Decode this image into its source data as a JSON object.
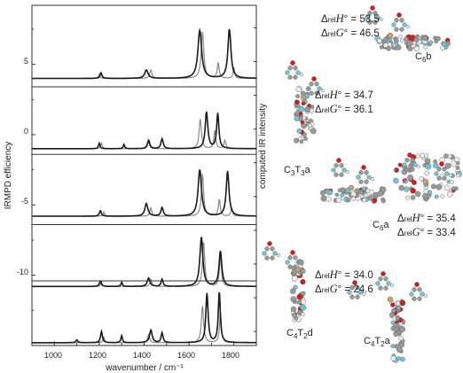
{
  "axes": {
    "xlabel": "wavenumber / cm⁻¹",
    "ylabel_left": "IRMPD efficiency",
    "ylabel_right": "computed IR intensity",
    "xticks": [
      "1000",
      "1200",
      "1400",
      "1600",
      "1800"
    ],
    "yticks": [
      "5",
      "0",
      "-5",
      "-10"
    ]
  },
  "chart_data": {
    "type": "line",
    "xlabel": "wavenumber / cm⁻¹",
    "ylabel": "IRMPD efficiency",
    "y2label": "computed IR intensity",
    "xlim": [
      900,
      1900
    ],
    "ylim": [
      -15,
      9.2
    ],
    "grid": false,
    "panels": [
      {
        "baseline": 4,
        "exp_peaks": [
          [
            1648,
            3.4,
            20
          ],
          [
            1780,
            3.5,
            16
          ],
          [
            1410,
            0.6,
            18
          ],
          [
            1208,
            0.4,
            10
          ]
        ],
        "calc_peaks": [
          [
            1660,
            3.3,
            14
          ],
          [
            1730,
            1.1,
            10
          ],
          [
            1800,
            0.8,
            8
          ],
          [
            1430,
            0.6,
            12
          ],
          [
            1200,
            0.3,
            8
          ]
        ]
      },
      {
        "baseline": -1,
        "exp_peaks": [
          [
            1678,
            2.6,
            14
          ],
          [
            1728,
            2.5,
            12
          ],
          [
            1480,
            0.7,
            12
          ],
          [
            1420,
            0.6,
            12
          ],
          [
            1200,
            0.4,
            8
          ],
          [
            1310,
            0.3,
            8
          ]
        ],
        "calc_peaks": [
          [
            1650,
            2.1,
            12
          ],
          [
            1715,
            1.3,
            10
          ],
          [
            1760,
            0.6,
            10
          ],
          [
            1420,
            0.5,
            10
          ],
          [
            1210,
            0.4,
            8
          ]
        ]
      },
      {
        "baseline": -5.8,
        "exp_peaks": [
          [
            1648,
            3.3,
            18
          ],
          [
            1772,
            3.2,
            15
          ],
          [
            1410,
            0.9,
            16
          ],
          [
            1480,
            0.6,
            12
          ],
          [
            1205,
            0.4,
            10
          ]
        ],
        "calc_peaks": [
          [
            1660,
            3.0,
            12
          ],
          [
            1735,
            1.2,
            10
          ],
          [
            1790,
            0.6,
            8
          ],
          [
            1430,
            0.6,
            10
          ],
          [
            1220,
            0.3,
            8
          ]
        ]
      },
      {
        "baseline": -10.8,
        "exp_peaks": [
          [
            1655,
            3.5,
            16
          ],
          [
            1740,
            2.5,
            15
          ],
          [
            1420,
            0.6,
            14
          ],
          [
            1480,
            0.5,
            10
          ],
          [
            1205,
            0.4,
            10
          ],
          [
            1300,
            0.3,
            8
          ]
        ],
        "calc_peaks": [
          [
            1665,
            3.2,
            12
          ],
          [
            1740,
            2.3,
            10
          ],
          [
            1430,
            0.5,
            10
          ],
          [
            1210,
            0.3,
            8
          ]
        ]
      },
      {
        "baseline": -14.8,
        "exp_peaks": [
          [
            1680,
            3.5,
            12
          ],
          [
            1735,
            3.6,
            11
          ],
          [
            1430,
            0.9,
            14
          ],
          [
            1480,
            0.7,
            10
          ],
          [
            1210,
            0.8,
            10
          ],
          [
            1300,
            0.5,
            8
          ],
          [
            1100,
            0.2,
            10
          ]
        ],
        "calc_peaks": [
          [
            1660,
            2.6,
            12
          ],
          [
            1740,
            2.1,
            10
          ],
          [
            1420,
            0.6,
            10
          ],
          [
            1220,
            0.4,
            8
          ]
        ]
      }
    ]
  },
  "structures": [
    {
      "name": "C6b",
      "base": "C",
      "sub": "6",
      "suffix": "b"
    },
    {
      "name": "C3T3a",
      "base": "C",
      "sub": "3",
      "mid": "T",
      "sub2": "3",
      "suffix": "a"
    },
    {
      "name": "C6a",
      "base": "C",
      "sub": "6",
      "suffix": "a"
    },
    {
      "name": "C4T2d",
      "base": "C",
      "sub": "4",
      "mid": "T",
      "sub2": "2",
      "suffix": "d"
    },
    {
      "name": "C4T2a",
      "base": "C",
      "sub": "4",
      "mid": "T",
      "sub2": "2",
      "suffix": "a"
    }
  ],
  "energies": [
    {
      "h": "53.5",
      "g": "46.5"
    },
    {
      "h": "34.7",
      "g": "36.1"
    },
    {
      "h": "35.4",
      "g": "33.4"
    },
    {
      "h": "34.0",
      "g": "24.6"
    }
  ],
  "energy_text": {
    "delta": "Δ",
    "rel": "rel",
    "h": "H",
    "g": "G",
    "deg": "°",
    "eq": " = "
  },
  "atom_colors": {
    "carbon": "#9a9a9a",
    "oxygen": "#cc2020",
    "nitrogen": "#6fc6d6",
    "hydrogen": "#ececec",
    "metal": "#c8a070"
  }
}
